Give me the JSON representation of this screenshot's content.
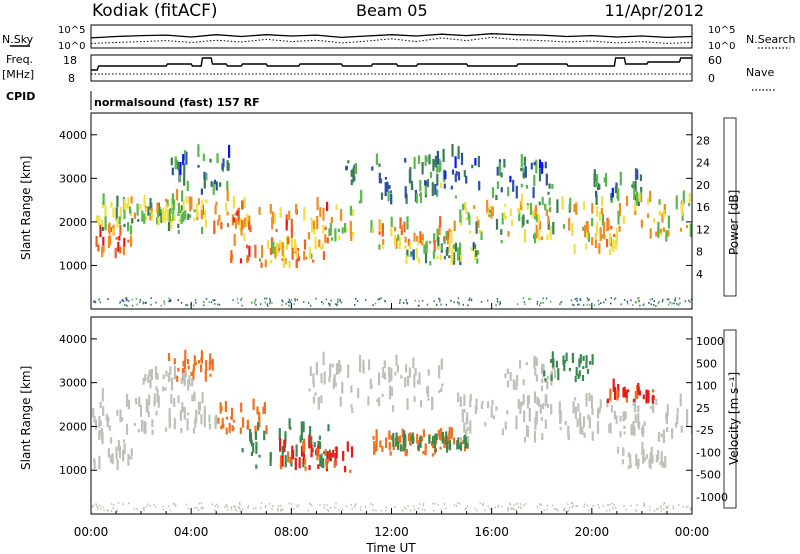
{
  "header": {
    "station": "Kodiak (fitACF)",
    "beam": "Beam 05",
    "date": "11/Apr/2012"
  },
  "top_panels": {
    "nsky_label": "N.Sky",
    "nsearch_label": "N.Search",
    "noise_ticks": [
      "10^5",
      "10^0"
    ],
    "freq_label": "Freq.",
    "freq_unit": "[MHz]",
    "freq_ticks": [
      "18",
      "8"
    ],
    "nave_label": "Nave",
    "nave_ticks": [
      "60",
      "0"
    ],
    "cpid_label": "CPID",
    "cpid_text": "normalsound (fast) 157 RF"
  },
  "x_axis": {
    "label": "Time UT",
    "ticks": [
      "00:00",
      "04:00",
      "08:00",
      "12:00",
      "16:00",
      "20:00",
      "00:00"
    ]
  },
  "power_panel": {
    "ylabel": "Slant Range [km]",
    "yticks": [
      "4000",
      "3000",
      "2000",
      "1000"
    ],
    "colorbar_label": "Power [dB]",
    "colorbar_ticks": [
      "28",
      "24",
      "20",
      "16",
      "12",
      "8",
      "4"
    ],
    "colors": [
      "#0a14ff",
      "#2a4fa8",
      "#3a7a58",
      "#58b84a",
      "#f0e040",
      "#f08c20",
      "#f06020",
      "#e81818"
    ]
  },
  "velocity_panel": {
    "ylabel": "Slant Range [km]",
    "yticks": [
      "4000",
      "3000",
      "2000",
      "1000"
    ],
    "colorbar_label": "Velocity [m s⁻¹]",
    "colorbar_ticks": [
      "1000",
      "500",
      "100",
      "25",
      "-25",
      "-100",
      "-500",
      "-1000"
    ],
    "colors": [
      "#1030c8",
      "#2e7fd0",
      "#3a8a50",
      "#50c030",
      "#c0c0b8",
      "#f0a030",
      "#f07020",
      "#e81818"
    ]
  },
  "chart_data": [
    {
      "type": "line",
      "title": "Kodiak (fitACF)",
      "x_range_hours": [
        0,
        24
      ],
      "series": [
        {
          "values_x": [
            0,
            1,
            2,
            3,
            4,
            5,
            6,
            7,
            8,
            9,
            10,
            11,
            12,
            13,
            14,
            15,
            16,
            17,
            18,
            19,
            20,
            21,
            22,
            23,
            24
          ],
          "values_y": [
            2.2,
            2.5,
            2.7,
            2.8,
            2.4,
            2.9,
            2.5,
            2.9,
            2.6,
            2.8,
            2.3,
            2.6,
            2.9,
            2.6,
            3.0,
            2.7,
            3.1,
            2.9,
            2.8,
            2.5,
            2.7,
            2.4,
            2.6,
            2.3,
            2.5
          ]
        },
        {
          "values_x": [
            0,
            1,
            2,
            3,
            4,
            5,
            6,
            7,
            8,
            9,
            10,
            11,
            12,
            13,
            14,
            15,
            16,
            17,
            18,
            19,
            20,
            21,
            22,
            23,
            24
          ],
          "values_y": [
            1.0,
            1.2,
            1.4,
            1.6,
            1.2,
            1.7,
            1.3,
            1.9,
            1.4,
            1.7,
            1.1,
            1.5,
            2.0,
            1.4,
            2.2,
            1.6,
            2.3,
            1.8,
            1.6,
            1.3,
            1.5,
            1.1,
            1.4,
            1.0,
            1.2
          ]
        }
      ]
    },
    {
      "type": "line",
      "x_range_hours": [
        0,
        24
      ],
      "ylim": [
        8,
        18
      ],
      "series": [
        {
          "values_x": [
            0,
            0.25,
            0.3,
            3.0,
            3.05,
            4.0,
            4.05,
            4.4,
            4.45,
            4.8,
            4.85,
            5.4,
            5.45,
            6.0,
            6.05,
            7.0,
            7.05,
            8.3,
            8.35,
            10.0,
            10.05,
            11.2,
            11.25,
            12.2,
            12.25,
            13.0,
            13.05,
            15.0,
            15.05,
            17.0,
            17.05,
            19.0,
            19.05,
            20.9,
            20.95,
            21.3,
            21.35,
            22.2,
            22.25,
            23.5,
            23.55,
            24.0
          ],
          "values_y": [
            12,
            12,
            14,
            14,
            15,
            15,
            14,
            14,
            18,
            18,
            15,
            15,
            14,
            14,
            15,
            15,
            14,
            14,
            15,
            15,
            14,
            14,
            15,
            15,
            14,
            14,
            15,
            15,
            14,
            14,
            15,
            15,
            14,
            14,
            18,
            18,
            15,
            15,
            16,
            16,
            18,
            18
          ]
        },
        {
          "values_x": [
            0,
            24
          ],
          "values_y": [
            10,
            10
          ]
        }
      ]
    },
    {
      "type": "heatmap",
      "title": "Power",
      "x_range_hours": [
        0,
        24
      ],
      "ylim": [
        0,
        4500
      ],
      "ylabel": "Slant Range [km]",
      "colorbar": {
        "label": "Power [dB]",
        "ticks": [
          4,
          8,
          12,
          16,
          20,
          24,
          28
        ]
      },
      "regions": [
        {
          "t": [
            0,
            1.6
          ],
          "r": [
            1100,
            1800
          ],
          "v": 26
        },
        {
          "t": [
            0,
            4.5
          ],
          "r": [
            1700,
            2400
          ],
          "v": 14
        },
        {
          "t": [
            1.5,
            4.5
          ],
          "r": [
            2000,
            2500
          ],
          "v": 18
        },
        {
          "t": [
            3,
            5.5
          ],
          "r": [
            2600,
            3500
          ],
          "v": 9
        },
        {
          "t": [
            4.5,
            6.2
          ],
          "r": [
            1700,
            2500
          ],
          "v": 22
        },
        {
          "t": [
            5.5,
            9.5
          ],
          "r": [
            1000,
            2300
          ],
          "v": 24
        },
        {
          "t": [
            6.5,
            9
          ],
          "r": [
            900,
            1400
          ],
          "v": 20
        },
        {
          "t": [
            8.5,
            10.5
          ],
          "r": [
            1500,
            2300
          ],
          "v": 18
        },
        {
          "t": [
            10,
            14
          ],
          "r": [
            2400,
            3400
          ],
          "v": 11
        },
        {
          "t": [
            11,
            14.5
          ],
          "r": [
            1300,
            1900
          ],
          "v": 21
        },
        {
          "t": [
            12.5,
            15.5
          ],
          "r": [
            1000,
            1400
          ],
          "v": 13
        },
        {
          "t": [
            13.5,
            15.5
          ],
          "r": [
            2500,
            3500
          ],
          "v": 8
        },
        {
          "t": [
            14.5,
            18
          ],
          "r": [
            1500,
            2400
          ],
          "v": 16
        },
        {
          "t": [
            16,
            18.5
          ],
          "r": [
            2500,
            3300
          ],
          "v": 9
        },
        {
          "t": [
            17.5,
            20.5
          ],
          "r": [
            1500,
            2400
          ],
          "v": 17
        },
        {
          "t": [
            19,
            21
          ],
          "r": [
            1200,
            1900
          ],
          "v": 22
        },
        {
          "t": [
            20,
            22
          ],
          "r": [
            2300,
            3000
          ],
          "v": 9
        },
        {
          "t": [
            21,
            24
          ],
          "r": [
            1500,
            2500
          ],
          "v": 18
        }
      ]
    },
    {
      "type": "heatmap",
      "title": "Velocity",
      "x_range_hours": [
        0,
        24
      ],
      "ylim": [
        0,
        4500
      ],
      "ylabel": "Slant Range [km]",
      "colorbar": {
        "label": "Velocity [m s⁻¹]",
        "ticks": [
          1000,
          500,
          100,
          25,
          -25,
          -100,
          -500,
          -1000
        ]
      },
      "regions": [
        {
          "t": [
            0,
            1.6
          ],
          "r": [
            1000,
            1800
          ],
          "v": 0
        },
        {
          "t": [
            0,
            5
          ],
          "r": [
            1800,
            2600
          ],
          "v": 0
        },
        {
          "t": [
            3,
            5
          ],
          "r": [
            3000,
            3500
          ],
          "v": -200
        },
        {
          "t": [
            2,
            4
          ],
          "r": [
            2800,
            3200
          ],
          "v": 0
        },
        {
          "t": [
            5,
            7
          ],
          "r": [
            1800,
            2400
          ],
          "v": -150
        },
        {
          "t": [
            6,
            9.5
          ],
          "r": [
            1000,
            2000
          ],
          "v": 150
        },
        {
          "t": [
            7.5,
            10.5
          ],
          "r": [
            900,
            1500
          ],
          "v": -300
        },
        {
          "t": [
            8.5,
            14
          ],
          "r": [
            2300,
            3400
          ],
          "v": 0
        },
        {
          "t": [
            11,
            15
          ],
          "r": [
            1300,
            1800
          ],
          "v": -200
        },
        {
          "t": [
            12,
            15
          ],
          "r": [
            1400,
            1700
          ],
          "v": 120
        },
        {
          "t": [
            14.5,
            24
          ],
          "r": [
            1600,
            2600
          ],
          "v": 0
        },
        {
          "t": [
            16.5,
            18.5
          ],
          "r": [
            2800,
            3400
          ],
          "v": 0
        },
        {
          "t": [
            18,
            20
          ],
          "r": [
            3000,
            3500
          ],
          "v": 150
        },
        {
          "t": [
            20.5,
            22.5
          ],
          "r": [
            2500,
            2800
          ],
          "v": -400
        },
        {
          "t": [
            21,
            23
          ],
          "r": [
            1000,
            1400
          ],
          "v": 0
        }
      ]
    }
  ]
}
